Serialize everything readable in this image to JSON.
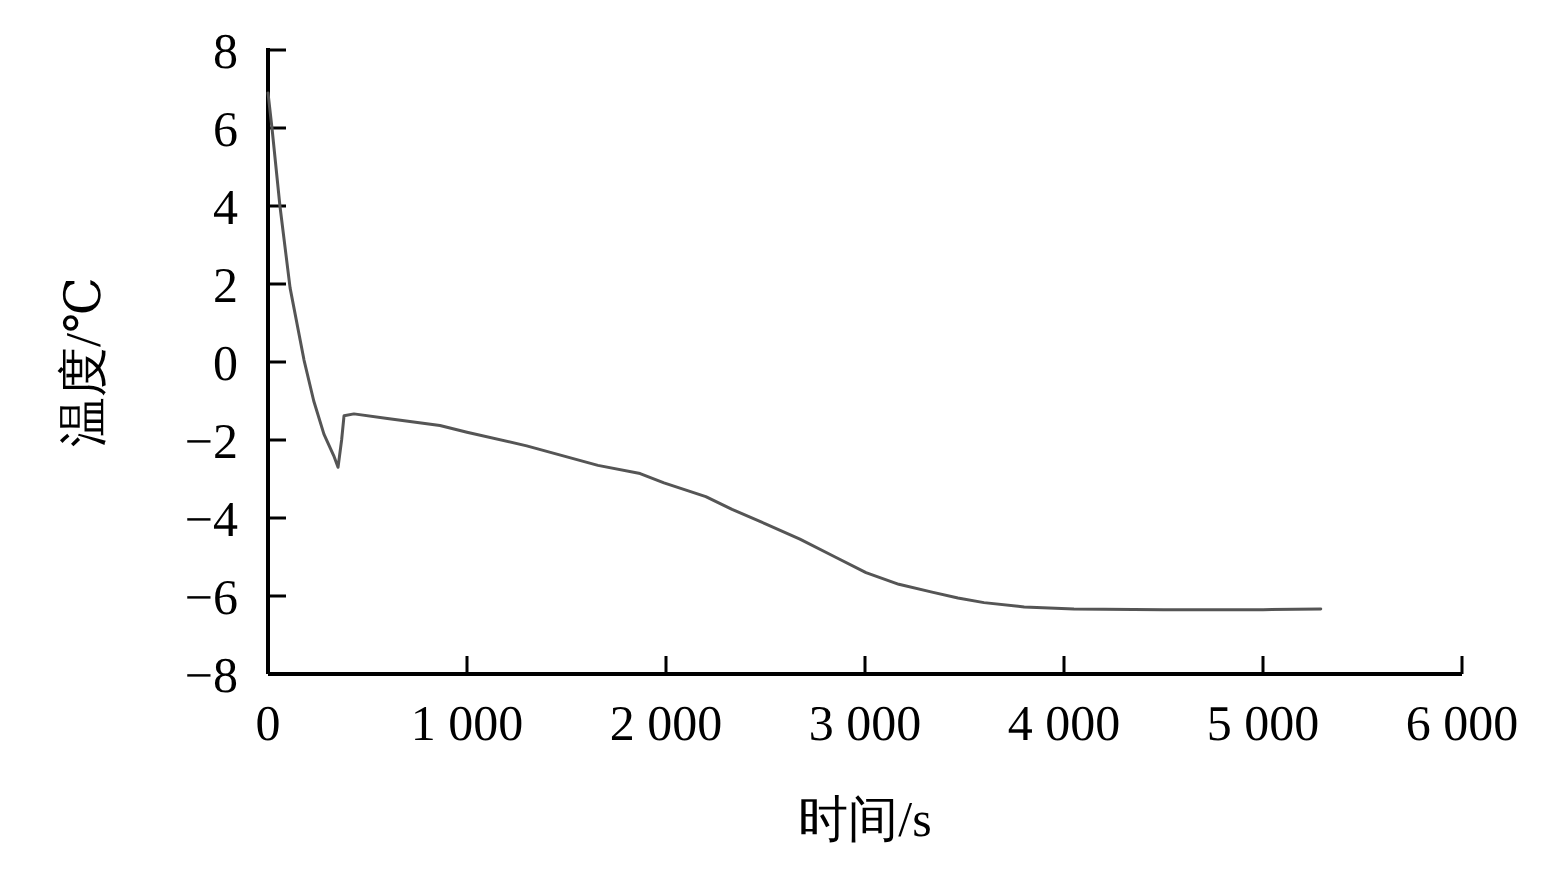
{
  "chart_data": {
    "type": "line",
    "xlabel": "时间/s",
    "ylabel": "温度/℃",
    "xlim": [
      0,
      6000
    ],
    "ylim": [
      -8,
      8
    ],
    "xticks": [
      0,
      {
        "value": 1000,
        "label": "1 000"
      },
      {
        "value": 2000,
        "label": "2 000"
      },
      {
        "value": 3000,
        "label": "3 000"
      },
      {
        "value": 4000,
        "label": "4 000"
      },
      {
        "value": 5000,
        "label": "5 000"
      },
      {
        "value": 6000,
        "label": "6 000"
      }
    ],
    "yticks": [
      {
        "value": -8,
        "label": "−8"
      },
      {
        "value": -6,
        "label": "−6"
      },
      {
        "value": -4,
        "label": "−4"
      },
      {
        "value": -2,
        "label": "−2"
      },
      0,
      2,
      4,
      6,
      8
    ],
    "grid": false,
    "marker": "none",
    "line_style": "solid",
    "series": [
      {
        "color": "#555555",
        "x": [
          0,
          20,
          60,
          111,
          181,
          230,
          281,
          330,
          352,
          370,
          382,
          432,
          600,
          864,
          1000,
          1300,
          1658,
          1870,
          1990,
          2200,
          2332,
          2500,
          2673,
          2850,
          3005,
          3170,
          3337,
          3467,
          3598,
          3800,
          4050,
          4500,
          5000,
          5290
        ],
        "values": [
          6.9,
          6.0,
          4.0,
          1.9,
          0.05,
          -1.0,
          -1.85,
          -2.4,
          -2.7,
          -2.0,
          -1.38,
          -1.33,
          -1.45,
          -1.63,
          -1.8,
          -2.15,
          -2.65,
          -2.86,
          -3.1,
          -3.45,
          -3.78,
          -4.15,
          -4.54,
          -5.0,
          -5.4,
          -5.7,
          -5.9,
          -6.05,
          -6.17,
          -6.28,
          -6.33,
          -6.35,
          -6.35,
          -6.33
        ]
      }
    ]
  }
}
